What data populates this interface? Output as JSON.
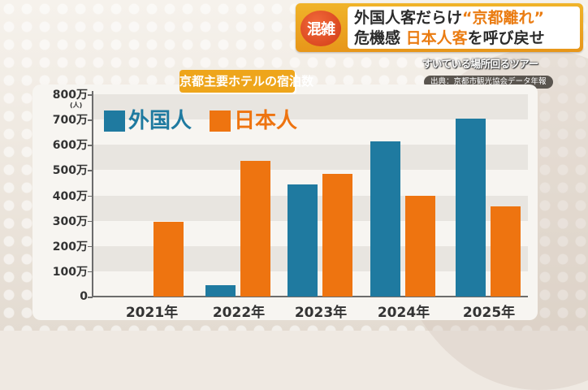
{
  "headline": {
    "badge": "混雑",
    "line1_prefix": "外国人客だらけ",
    "line1_accent": "“京都離れ”",
    "line2_prefix": "危機感",
    "line2_accent": "日本人客",
    "line2_suffix": "を呼び戻せ"
  },
  "subcaption": "すいている場所回るツアー",
  "source": "出典：京都市観光協会データ年報",
  "colors": {
    "foreign": "#1f7aa0",
    "japanese": "#ee7410",
    "title_bg": "#eea51b",
    "badge": "#d9431c"
  },
  "chart_data": {
    "type": "bar",
    "title": "京都主要ホテルの宿泊数",
    "xlabel": "",
    "ylabel": "(人)",
    "ylim": [
      0,
      8000000
    ],
    "yticks": [
      "0",
      "100万",
      "200万",
      "300万",
      "400万",
      "500万",
      "600万",
      "700万",
      "800万"
    ],
    "categories": [
      "2021年",
      "2022年",
      "2023年",
      "2024年",
      "2025年"
    ],
    "series": [
      {
        "name": "外国人",
        "color": "#1f7aa0",
        "values": [
          0,
          450000,
          4420000,
          6130000,
          7030000
        ]
      },
      {
        "name": "日本人",
        "color": "#ee7410",
        "values": [
          2970000,
          5350000,
          4840000,
          3970000,
          3580000
        ]
      }
    ],
    "legend_position": "top-left inside",
    "grid": "alternating horizontal bands"
  }
}
